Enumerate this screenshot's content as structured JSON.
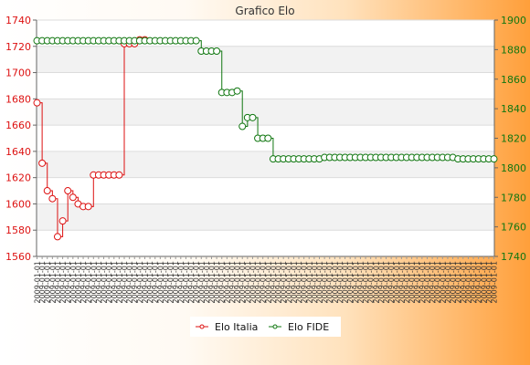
{
  "chart_data": {
    "type": "line",
    "title": "Grafico Elo",
    "legend": {
      "position": "bottom-center"
    },
    "grid": true,
    "colors": {
      "italia": "#dd1111",
      "fide": "#117711"
    },
    "x_tick_text": "2009-01-01",
    "x_tick_count": 90,
    "left_axis": {
      "ylim": [
        1560,
        1740
      ],
      "ticks": [
        "1740",
        "1720",
        "1700",
        "1680",
        "1660",
        "1640",
        "1620",
        "1600",
        "1580",
        "1560"
      ]
    },
    "right_axis": {
      "ylim": [
        1740,
        1900
      ],
      "ticks": [
        "1900",
        "1880",
        "1860",
        "1840",
        "1820",
        "1800",
        "1780",
        "1760",
        "1740"
      ]
    },
    "series": [
      {
        "name": "Elo Italia",
        "axis": "left",
        "values": [
          1677,
          1631,
          1610,
          1604,
          1575,
          1587,
          1610,
          1605,
          1600,
          1598,
          1598,
          1622,
          1622,
          1622,
          1622,
          1622,
          1622,
          1722,
          1722,
          1722,
          1725,
          1725
        ]
      },
      {
        "name": "Elo FIDE",
        "axis": "right",
        "values": [
          1886,
          1886,
          1886,
          1886,
          1886,
          1886,
          1886,
          1886,
          1886,
          1886,
          1886,
          1886,
          1886,
          1886,
          1886,
          1886,
          1886,
          1886,
          1886,
          1886,
          1886,
          1886,
          1886,
          1886,
          1886,
          1886,
          1886,
          1886,
          1886,
          1886,
          1886,
          1886,
          1879,
          1879,
          1879,
          1879,
          1851,
          1851,
          1851,
          1852,
          1828,
          1834,
          1834,
          1820,
          1820,
          1820,
          1806,
          1806,
          1806,
          1806,
          1806,
          1806,
          1806,
          1806,
          1806,
          1806,
          1807,
          1807,
          1807,
          1807,
          1807,
          1807,
          1807,
          1807,
          1807,
          1807,
          1807,
          1807,
          1807,
          1807,
          1807,
          1807,
          1807,
          1807,
          1807,
          1807,
          1807,
          1807,
          1807,
          1807,
          1807,
          1807,
          1806,
          1806,
          1806,
          1806,
          1806,
          1806,
          1806,
          1806
        ]
      }
    ]
  }
}
